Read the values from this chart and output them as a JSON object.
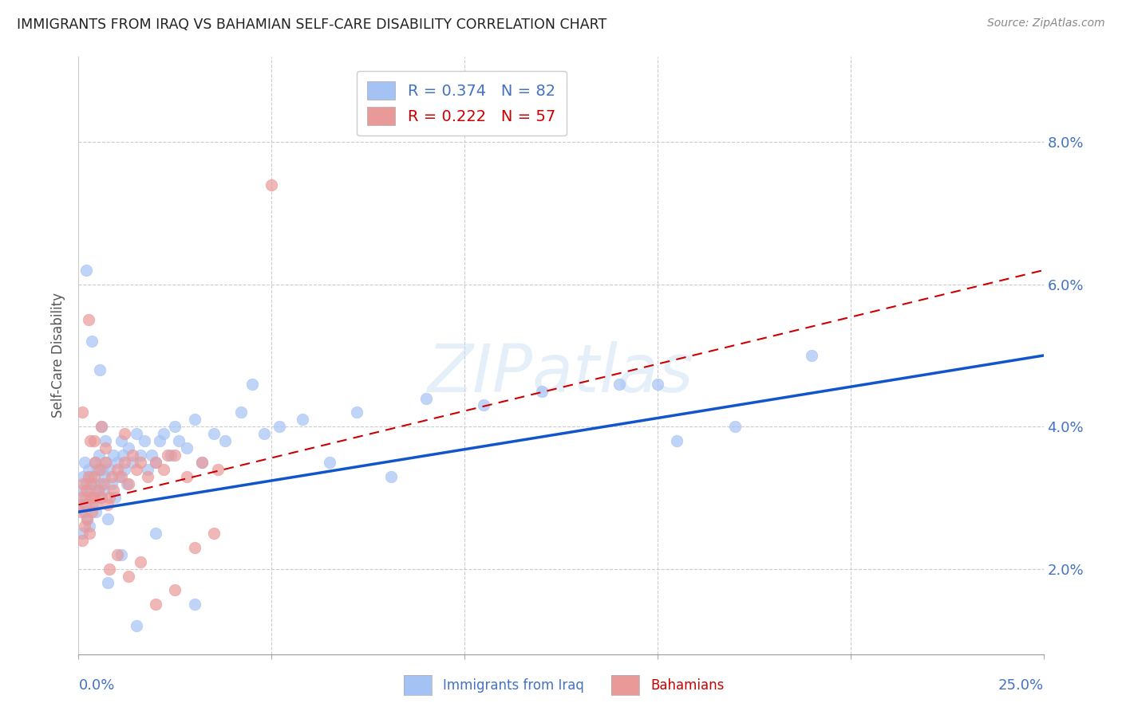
{
  "title": "IMMIGRANTS FROM IRAQ VS BAHAMIAN SELF-CARE DISABILITY CORRELATION CHART",
  "source": "Source: ZipAtlas.com",
  "ylabel": "Self-Care Disability",
  "xlim": [
    0.0,
    25.0
  ],
  "ylim": [
    0.8,
    9.2
  ],
  "yticks": [
    2.0,
    4.0,
    6.0,
    8.0
  ],
  "ytick_labels": [
    "2.0%",
    "4.0%",
    "6.0%",
    "8.0%"
  ],
  "blue_color": "#a4c2f4",
  "pink_color": "#ea9999",
  "line_blue": "#1155cc",
  "line_pink": "#cc0000",
  "background": "#ffffff",
  "grid_color": "#cccccc",
  "blue_scatter_x": [
    0.05,
    0.08,
    0.1,
    0.12,
    0.15,
    0.15,
    0.18,
    0.2,
    0.22,
    0.25,
    0.28,
    0.3,
    0.32,
    0.35,
    0.38,
    0.4,
    0.42,
    0.45,
    0.48,
    0.5,
    0.52,
    0.55,
    0.58,
    0.6,
    0.62,
    0.65,
    0.68,
    0.7,
    0.72,
    0.75,
    0.8,
    0.85,
    0.9,
    0.95,
    1.0,
    1.05,
    1.1,
    1.15,
    1.2,
    1.25,
    1.3,
    1.4,
    1.5,
    1.6,
    1.7,
    1.8,
    1.9,
    2.0,
    2.1,
    2.2,
    2.4,
    2.5,
    2.6,
    2.8,
    3.0,
    3.2,
    3.5,
    3.8,
    4.2,
    4.8,
    5.2,
    5.8,
    6.5,
    7.2,
    8.1,
    9.0,
    10.5,
    12.0,
    14.0,
    15.5,
    17.0,
    19.0,
    0.2,
    0.35,
    0.55,
    0.75,
    1.1,
    1.5,
    2.0,
    3.0,
    4.5,
    15.0
  ],
  "blue_scatter_y": [
    2.9,
    3.1,
    2.5,
    3.3,
    2.8,
    3.5,
    3.0,
    3.2,
    2.7,
    3.4,
    2.6,
    3.1,
    3.3,
    2.9,
    3.0,
    3.2,
    3.5,
    2.8,
    3.4,
    3.1,
    3.6,
    3.0,
    3.2,
    4.0,
    3.4,
    3.1,
    3.3,
    3.8,
    3.5,
    2.7,
    3.4,
    3.2,
    3.6,
    3.0,
    3.5,
    3.3,
    3.8,
    3.6,
    3.4,
    3.2,
    3.7,
    3.5,
    3.9,
    3.6,
    3.8,
    3.4,
    3.6,
    3.5,
    3.8,
    3.9,
    3.6,
    4.0,
    3.8,
    3.7,
    4.1,
    3.5,
    3.9,
    3.8,
    4.2,
    3.9,
    4.0,
    4.1,
    3.5,
    4.2,
    3.3,
    4.4,
    4.3,
    4.5,
    4.6,
    3.8,
    4.0,
    5.0,
    6.2,
    5.2,
    4.8,
    1.8,
    2.2,
    1.2,
    2.5,
    1.5,
    4.6,
    4.6
  ],
  "pink_scatter_x": [
    0.05,
    0.08,
    0.1,
    0.12,
    0.15,
    0.18,
    0.2,
    0.22,
    0.25,
    0.28,
    0.3,
    0.32,
    0.35,
    0.38,
    0.4,
    0.42,
    0.45,
    0.5,
    0.55,
    0.6,
    0.65,
    0.7,
    0.75,
    0.8,
    0.85,
    0.9,
    1.0,
    1.1,
    1.2,
    1.3,
    1.4,
    1.5,
    1.6,
    1.8,
    2.0,
    2.2,
    2.5,
    2.8,
    3.2,
    3.6,
    0.1,
    0.25,
    0.4,
    0.6,
    0.8,
    1.0,
    1.3,
    1.6,
    2.0,
    2.5,
    3.0,
    3.5,
    0.3,
    0.7,
    1.2,
    2.3,
    5.0
  ],
  "pink_scatter_y": [
    2.8,
    3.0,
    2.4,
    3.2,
    2.6,
    2.9,
    3.1,
    2.7,
    3.3,
    2.5,
    3.0,
    3.2,
    2.8,
    3.0,
    3.3,
    3.5,
    2.9,
    3.1,
    3.4,
    3.0,
    3.2,
    3.5,
    2.9,
    3.0,
    3.3,
    3.1,
    3.4,
    3.3,
    3.5,
    3.2,
    3.6,
    3.4,
    3.5,
    3.3,
    3.5,
    3.4,
    3.6,
    3.3,
    3.5,
    3.4,
    4.2,
    5.5,
    3.8,
    4.0,
    2.0,
    2.2,
    1.9,
    2.1,
    1.5,
    1.7,
    2.3,
    2.5,
    3.8,
    3.7,
    3.9,
    3.6,
    7.4
  ],
  "blue_line_x0": 0.0,
  "blue_line_x1": 25.0,
  "blue_line_y0": 2.8,
  "blue_line_y1": 5.0,
  "pink_line_x0": 0.0,
  "pink_line_x1": 25.0,
  "pink_line_y0": 2.9,
  "pink_line_y1": 6.2
}
